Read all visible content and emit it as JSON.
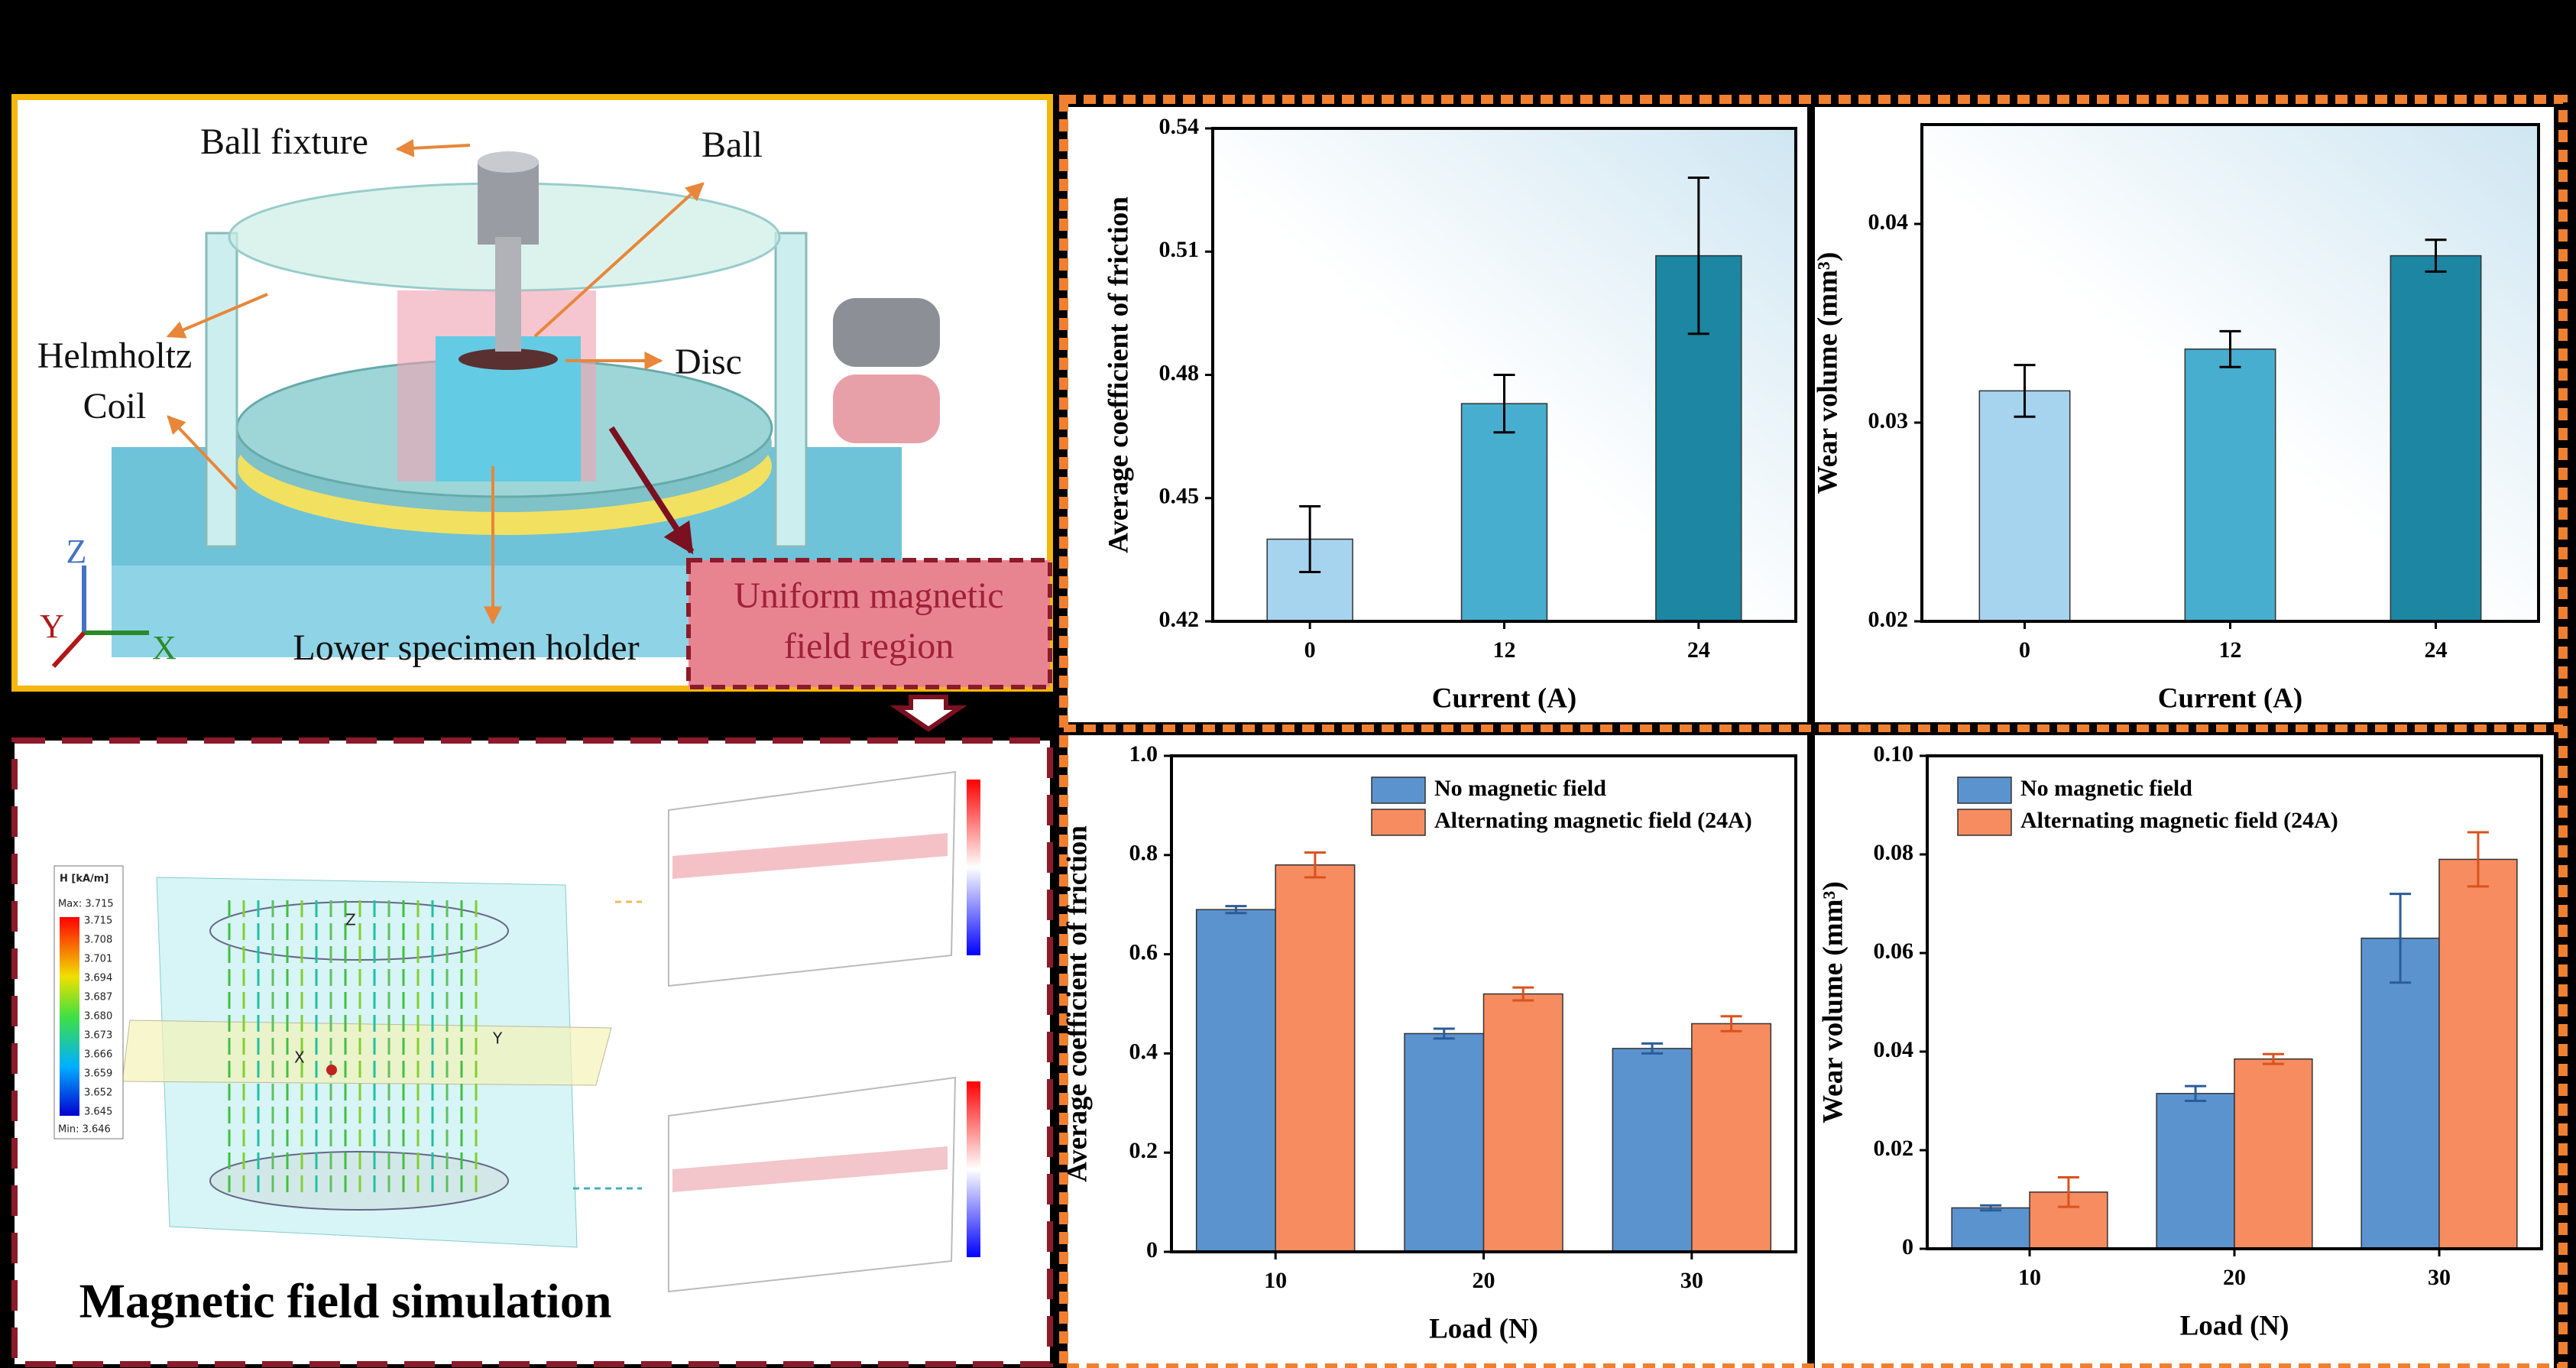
{
  "chart_data": [
    {
      "type": "bar",
      "ylabel": "Average coefficient of friction",
      "xlabel": "Current (A)",
      "categories": [
        "0",
        "12",
        "24"
      ],
      "values": [
        0.44,
        0.473,
        0.509
      ],
      "errors": [
        0.008,
        0.007,
        0.019
      ],
      "colors": [
        "#a6d4ee",
        "#47aed0",
        "#1c86a3"
      ],
      "error_color": "#000000",
      "ylim": [
        0.42,
        0.54
      ],
      "yticks": [
        0.42,
        0.45,
        0.48,
        0.51,
        0.54
      ]
    },
    {
      "type": "bar",
      "ylabel": "Wear volume (mm³)",
      "xlabel": "Current (A)",
      "categories": [
        "0",
        "12",
        "24"
      ],
      "values": [
        0.0316,
        0.0337,
        0.0384
      ],
      "errors": [
        0.0013,
        0.0009,
        0.0008
      ],
      "colors": [
        "#a6d4ee",
        "#47aed0",
        "#1c86a3"
      ],
      "error_color": "#000000",
      "ylim": [
        0.02,
        0.045
      ],
      "yticks": [
        0.02,
        0.03,
        0.04
      ]
    },
    {
      "type": "bar",
      "ylabel": "Average coefficient of friction",
      "xlabel": "Load (N)",
      "categories": [
        "10",
        "20",
        "30"
      ],
      "legend": "upper right",
      "series": [
        {
          "name": "No magnetic field",
          "color": "#5b93cf",
          "error_color": "#2a5c9a",
          "values": [
            0.69,
            0.44,
            0.41
          ],
          "errors": [
            0.007,
            0.01,
            0.01
          ]
        },
        {
          "name": "Alternating magnetic field (24A)",
          "color": "#f68c5f",
          "error_color": "#d9531e",
          "values": [
            0.78,
            0.52,
            0.46
          ],
          "errors": [
            0.025,
            0.013,
            0.015
          ]
        }
      ],
      "ylim": [
        0,
        1
      ],
      "yticks": [
        0,
        0.2,
        0.4,
        0.6,
        0.8,
        {
          "value": 1,
          "label": "1.0"
        }
      ]
    },
    {
      "type": "bar",
      "ylabel": "Wear volume (mm³)",
      "xlabel": "Load (N)",
      "categories": [
        "10",
        "20",
        "30"
      ],
      "legend": "upper left",
      "series": [
        {
          "name": "No magnetic field",
          "color": "#5b93cf",
          "error_color": "#2a5c9a",
          "values": [
            0.0083,
            0.0315,
            0.063
          ],
          "errors": [
            0.0005,
            0.0015,
            0.009
          ]
        },
        {
          "name": "Alternating magnetic field  (24A)",
          "color": "#f68c5f",
          "error_color": "#d9531e",
          "values": [
            0.0115,
            0.0385,
            0.079
          ],
          "errors": [
            0.003,
            0.001,
            0.0055
          ]
        }
      ],
      "ylim": [
        0,
        0.1
      ],
      "yticks": [
        0,
        0.02,
        0.04,
        0.06,
        0.08,
        {
          "value": 0.1,
          "label": "0.10"
        }
      ]
    }
  ],
  "diagram": {
    "ball_fixture": "Ball fixture",
    "ball": "Ball",
    "helmholtz": "Helmholtz",
    "coil": "Coil",
    "disc": "Disc",
    "lower_holder": "Lower specimen holder",
    "region_line1": "Uniform magnetic",
    "region_line2": "field region",
    "axis_z": "Z",
    "axis_y": "Y",
    "axis_x": "X"
  },
  "simulation": {
    "title": "Magnetic field simulation",
    "colorbar_title": "H [kA/m]",
    "max": "Max: 3.715",
    "min": "Min: 3.646",
    "colorbar_values": [
      "3.715",
      "3.708",
      "3.701",
      "3.694",
      "3.687",
      "3.680",
      "3.673",
      "3.666",
      "3.659",
      "3.652",
      "3.645"
    ],
    "axis_z": "Z",
    "axis_y": "Y",
    "axis_x": "X"
  }
}
